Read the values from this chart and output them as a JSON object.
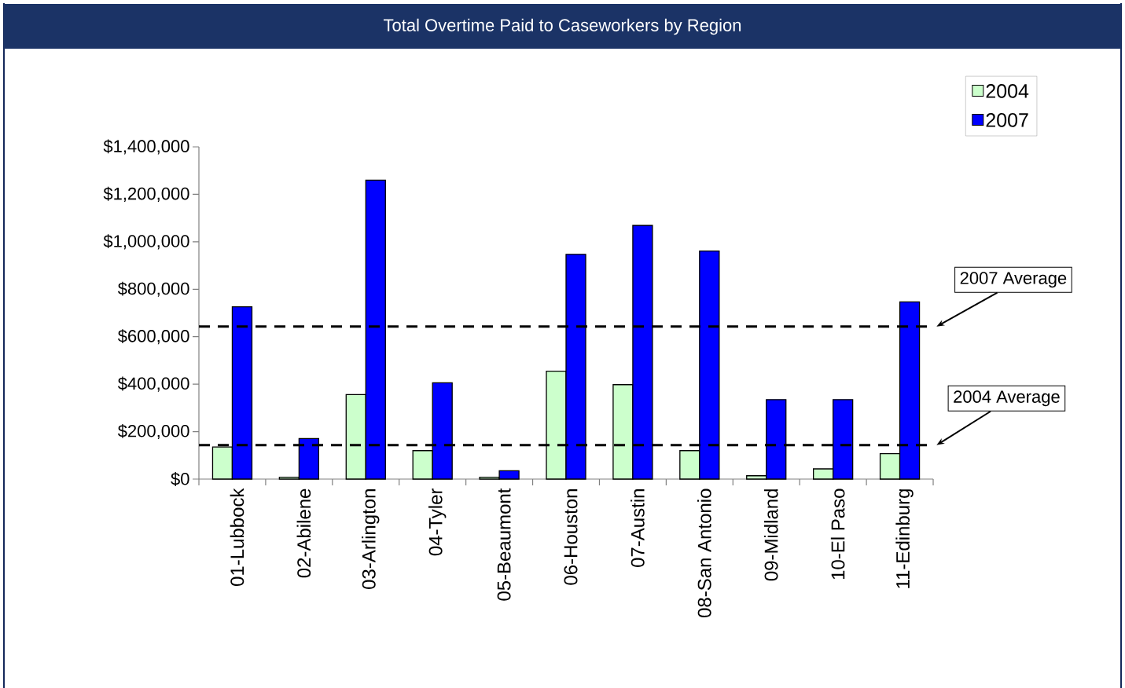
{
  "chart_data": {
    "type": "bar",
    "title": "Total Overtime Paid to Caseworkers by Region",
    "categories": [
      "01-Lubbock",
      "02-Abilene",
      "03-Arlington",
      "04-Tyler",
      "05-Beaumont",
      "06-Houston",
      "07-Austin",
      "08-San Antonio",
      "09-Midland",
      "10-El Paso",
      "11-Edinburg"
    ],
    "series": [
      {
        "name": "2004",
        "color": "#ccffcc",
        "values": [
          135000,
          8000,
          356000,
          120000,
          8000,
          455000,
          398000,
          120000,
          14000,
          43000,
          107000
        ]
      },
      {
        "name": "2007",
        "color": "#0000ff",
        "values": [
          726000,
          171000,
          1260000,
          406000,
          35000,
          947000,
          1069000,
          961000,
          335000,
          335000,
          747000
        ]
      }
    ],
    "ylim": [
      0,
      1400000
    ],
    "yticks": [
      {
        "value": 0,
        "label": "$0"
      },
      {
        "value": 200000,
        "label": "$200,000"
      },
      {
        "value": 400000,
        "label": "$400,000"
      },
      {
        "value": 600000,
        "label": "$600,000"
      },
      {
        "value": 800000,
        "label": "$800,000"
      },
      {
        "value": 1000000,
        "label": "$1,000,000"
      },
      {
        "value": 1200000,
        "label": "$1,200,000"
      },
      {
        "value": 1400000,
        "label": "$1,400,000"
      }
    ],
    "ref_lines": [
      {
        "axis": "y",
        "value": 643000,
        "label": "2007 Average",
        "color": "#000000",
        "line_style": "dashed"
      },
      {
        "axis": "y",
        "value": 143000,
        "label": "2004 Average",
        "color": "#000000",
        "line_style": "dashed"
      }
    ],
    "grid": false,
    "legend": "top right"
  }
}
